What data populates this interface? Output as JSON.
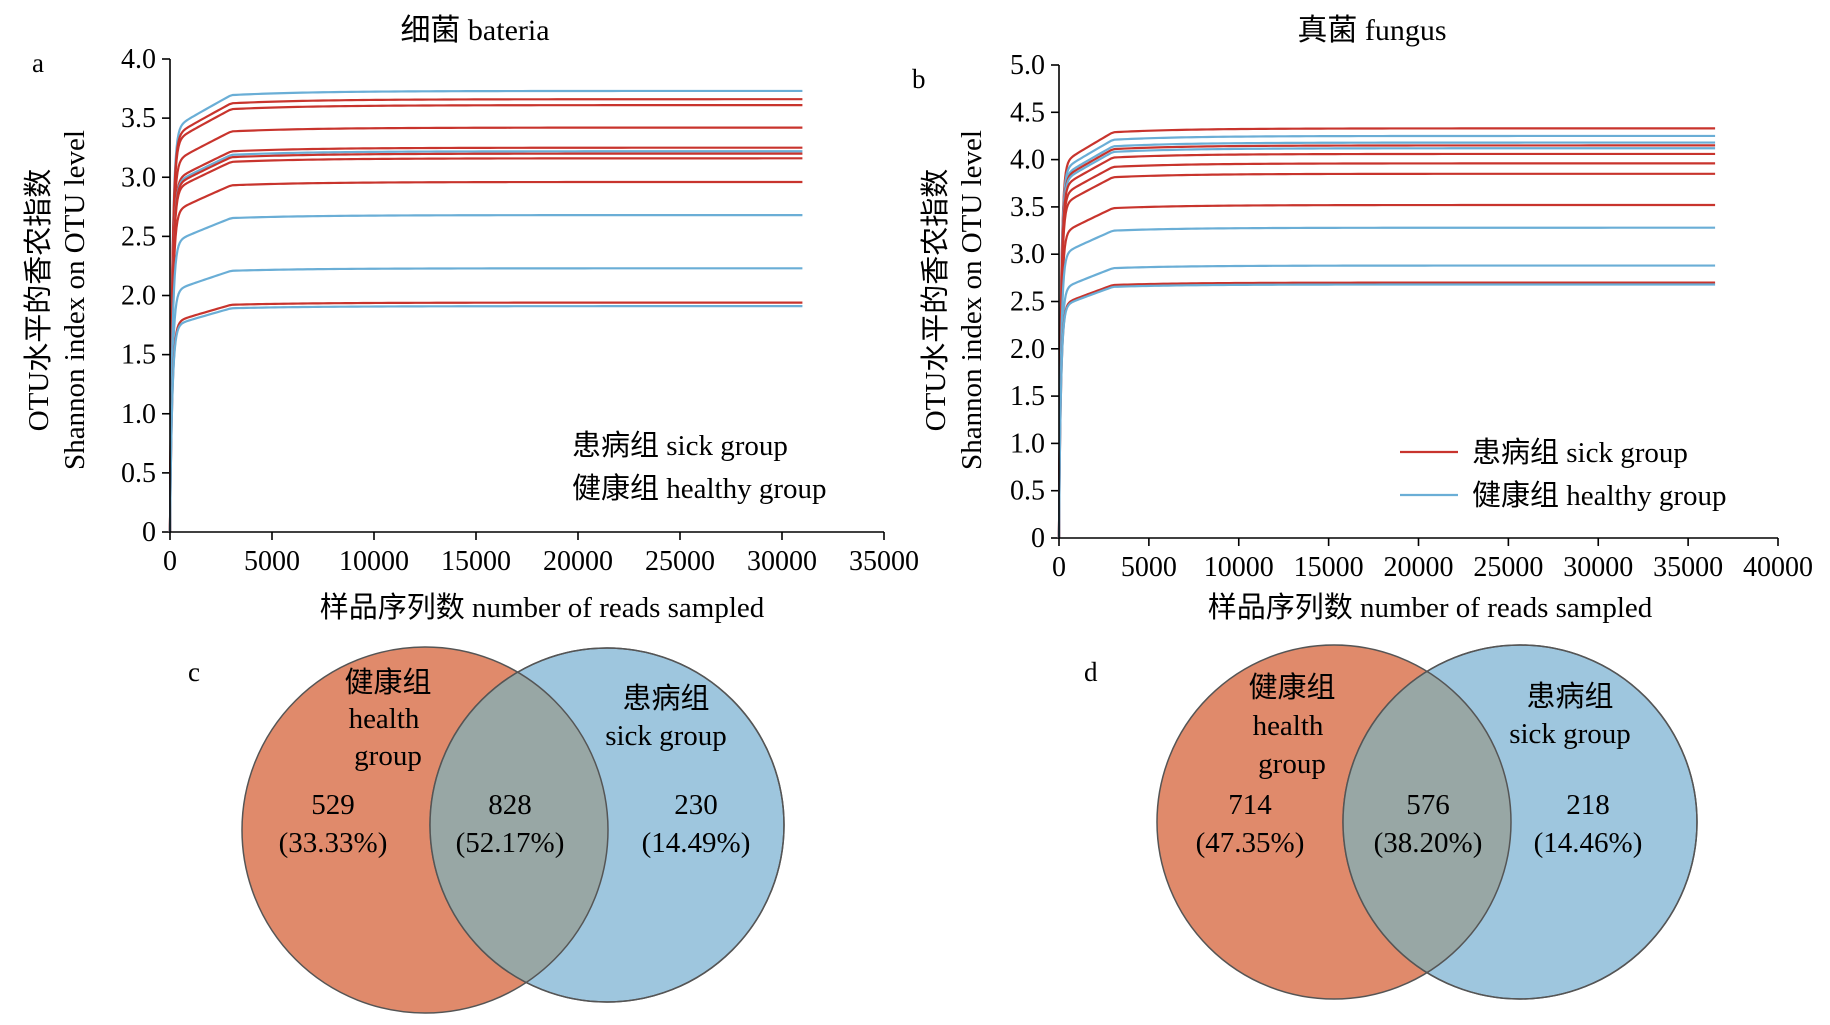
{
  "colors": {
    "sick": "#c8342d",
    "healthy": "#6aaed6",
    "venn_left": "#e08a6b",
    "venn_right": "#9ec6de",
    "venn_overlap": "#98a7a5"
  },
  "chart_data": [
    {
      "panel": "a",
      "type": "line",
      "title": "细菌 bateria",
      "xlabel": "样品序列数 number of reads sampled",
      "ylabel_line1": "OTU水平的香农指数",
      "ylabel_line2": "Shannon index on OTU level",
      "xlim": [
        0,
        35000
      ],
      "ylim": [
        0,
        4.0
      ],
      "xticks": [
        "0",
        "5000",
        "10000",
        "15000",
        "20000",
        "25000",
        "30000",
        "35000"
      ],
      "yticks": [
        "0",
        "0.5",
        "1.0",
        "1.5",
        "2.0",
        "2.5",
        "3.0",
        "3.5",
        "4.0"
      ],
      "x_end": 31000,
      "legend": [
        "患病组 sick group",
        "健康组 healthy group"
      ],
      "series": [
        {
          "group": "healthy",
          "plateau": 3.73
        },
        {
          "group": "sick",
          "plateau": 3.66
        },
        {
          "group": "sick",
          "plateau": 3.61
        },
        {
          "group": "sick",
          "plateau": 3.42
        },
        {
          "group": "sick",
          "plateau": 3.25
        },
        {
          "group": "healthy",
          "plateau": 3.22
        },
        {
          "group": "sick",
          "plateau": 3.2
        },
        {
          "group": "sick",
          "plateau": 3.16
        },
        {
          "group": "sick",
          "plateau": 2.96
        },
        {
          "group": "healthy",
          "plateau": 2.68
        },
        {
          "group": "healthy",
          "plateau": 2.23
        },
        {
          "group": "sick",
          "plateau": 1.94
        },
        {
          "group": "healthy",
          "plateau": 1.91
        }
      ]
    },
    {
      "panel": "b",
      "type": "line",
      "title": "真菌 fungus",
      "xlabel": "样品序列数 number of reads sampled",
      "ylabel_line1": "OTU水平的香农指数",
      "ylabel_line2": "Shannon index on OTU level",
      "xlim": [
        0,
        40000
      ],
      "ylim": [
        0,
        5.0
      ],
      "xticks": [
        "0",
        "5000",
        "10000",
        "15000",
        "20000",
        "25000",
        "30000",
        "35000",
        "40000"
      ],
      "yticks": [
        "0",
        "0.5",
        "1.0",
        "1.5",
        "2.0",
        "2.5",
        "3.0",
        "3.5",
        "4.0",
        "4.5",
        "5.0"
      ],
      "x_end": 36500,
      "legend": [
        "患病组 sick group",
        "健康组 healthy group"
      ],
      "series": [
        {
          "group": "sick",
          "plateau": 4.33
        },
        {
          "group": "healthy",
          "plateau": 4.25
        },
        {
          "group": "healthy",
          "plateau": 4.18
        },
        {
          "group": "sick",
          "plateau": 4.15
        },
        {
          "group": "healthy",
          "plateau": 4.12
        },
        {
          "group": "sick",
          "plateau": 4.06
        },
        {
          "group": "sick",
          "plateau": 3.96
        },
        {
          "group": "sick",
          "plateau": 3.85
        },
        {
          "group": "sick",
          "plateau": 3.52
        },
        {
          "group": "healthy",
          "plateau": 3.28
        },
        {
          "group": "healthy",
          "plateau": 2.88
        },
        {
          "group": "sick",
          "plateau": 2.7
        },
        {
          "group": "healthy",
          "plateau": 2.68
        }
      ]
    },
    {
      "panel": "c",
      "type": "venn",
      "left": {
        "label_lines": [
          "健康组",
          "health",
          "group"
        ],
        "count": "529",
        "percent": "(33.33%)"
      },
      "overlap": {
        "count": "828",
        "percent": "(52.17%)"
      },
      "right": {
        "label_lines": [
          "患病组",
          "sick group"
        ],
        "count": "230",
        "percent": "(14.49%)"
      }
    },
    {
      "panel": "d",
      "type": "venn",
      "left": {
        "label_lines": [
          "健康组",
          "health",
          "group"
        ],
        "count": "714",
        "percent": "(47.35%)"
      },
      "overlap": {
        "count": "576",
        "percent": "(38.20%)"
      },
      "right": {
        "label_lines": [
          "患病组",
          "sick group"
        ],
        "count": "218",
        "percent": "(14.46%)"
      }
    }
  ]
}
